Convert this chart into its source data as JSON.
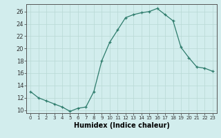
{
  "x": [
    0,
    1,
    2,
    3,
    4,
    5,
    6,
    7,
    8,
    9,
    10,
    11,
    12,
    13,
    14,
    15,
    16,
    17,
    18,
    19,
    20,
    21,
    22,
    23
  ],
  "y": [
    13,
    12,
    11.5,
    11,
    10.5,
    9.8,
    10.3,
    10.5,
    13,
    18,
    21,
    23,
    25,
    25.5,
    25.8,
    26,
    26.5,
    25.5,
    24.5,
    20.2,
    18.5,
    17,
    16.8,
    16.3
  ],
  "line_color": "#2d7b6b",
  "marker": "+",
  "marker_color": "#2d7b6b",
  "bg_color": "#d2eded",
  "grid_color": "#b8d8d4",
  "xlabel": "Humidex (Indice chaleur)",
  "xlabel_fontsize": 7,
  "ylabel_ticks": [
    10,
    12,
    14,
    16,
    18,
    20,
    22,
    24,
    26
  ],
  "xtick_fontsize": 5,
  "ytick_fontsize": 6,
  "xlim": [
    -0.5,
    23.5
  ],
  "ylim": [
    9.5,
    27.2
  ]
}
